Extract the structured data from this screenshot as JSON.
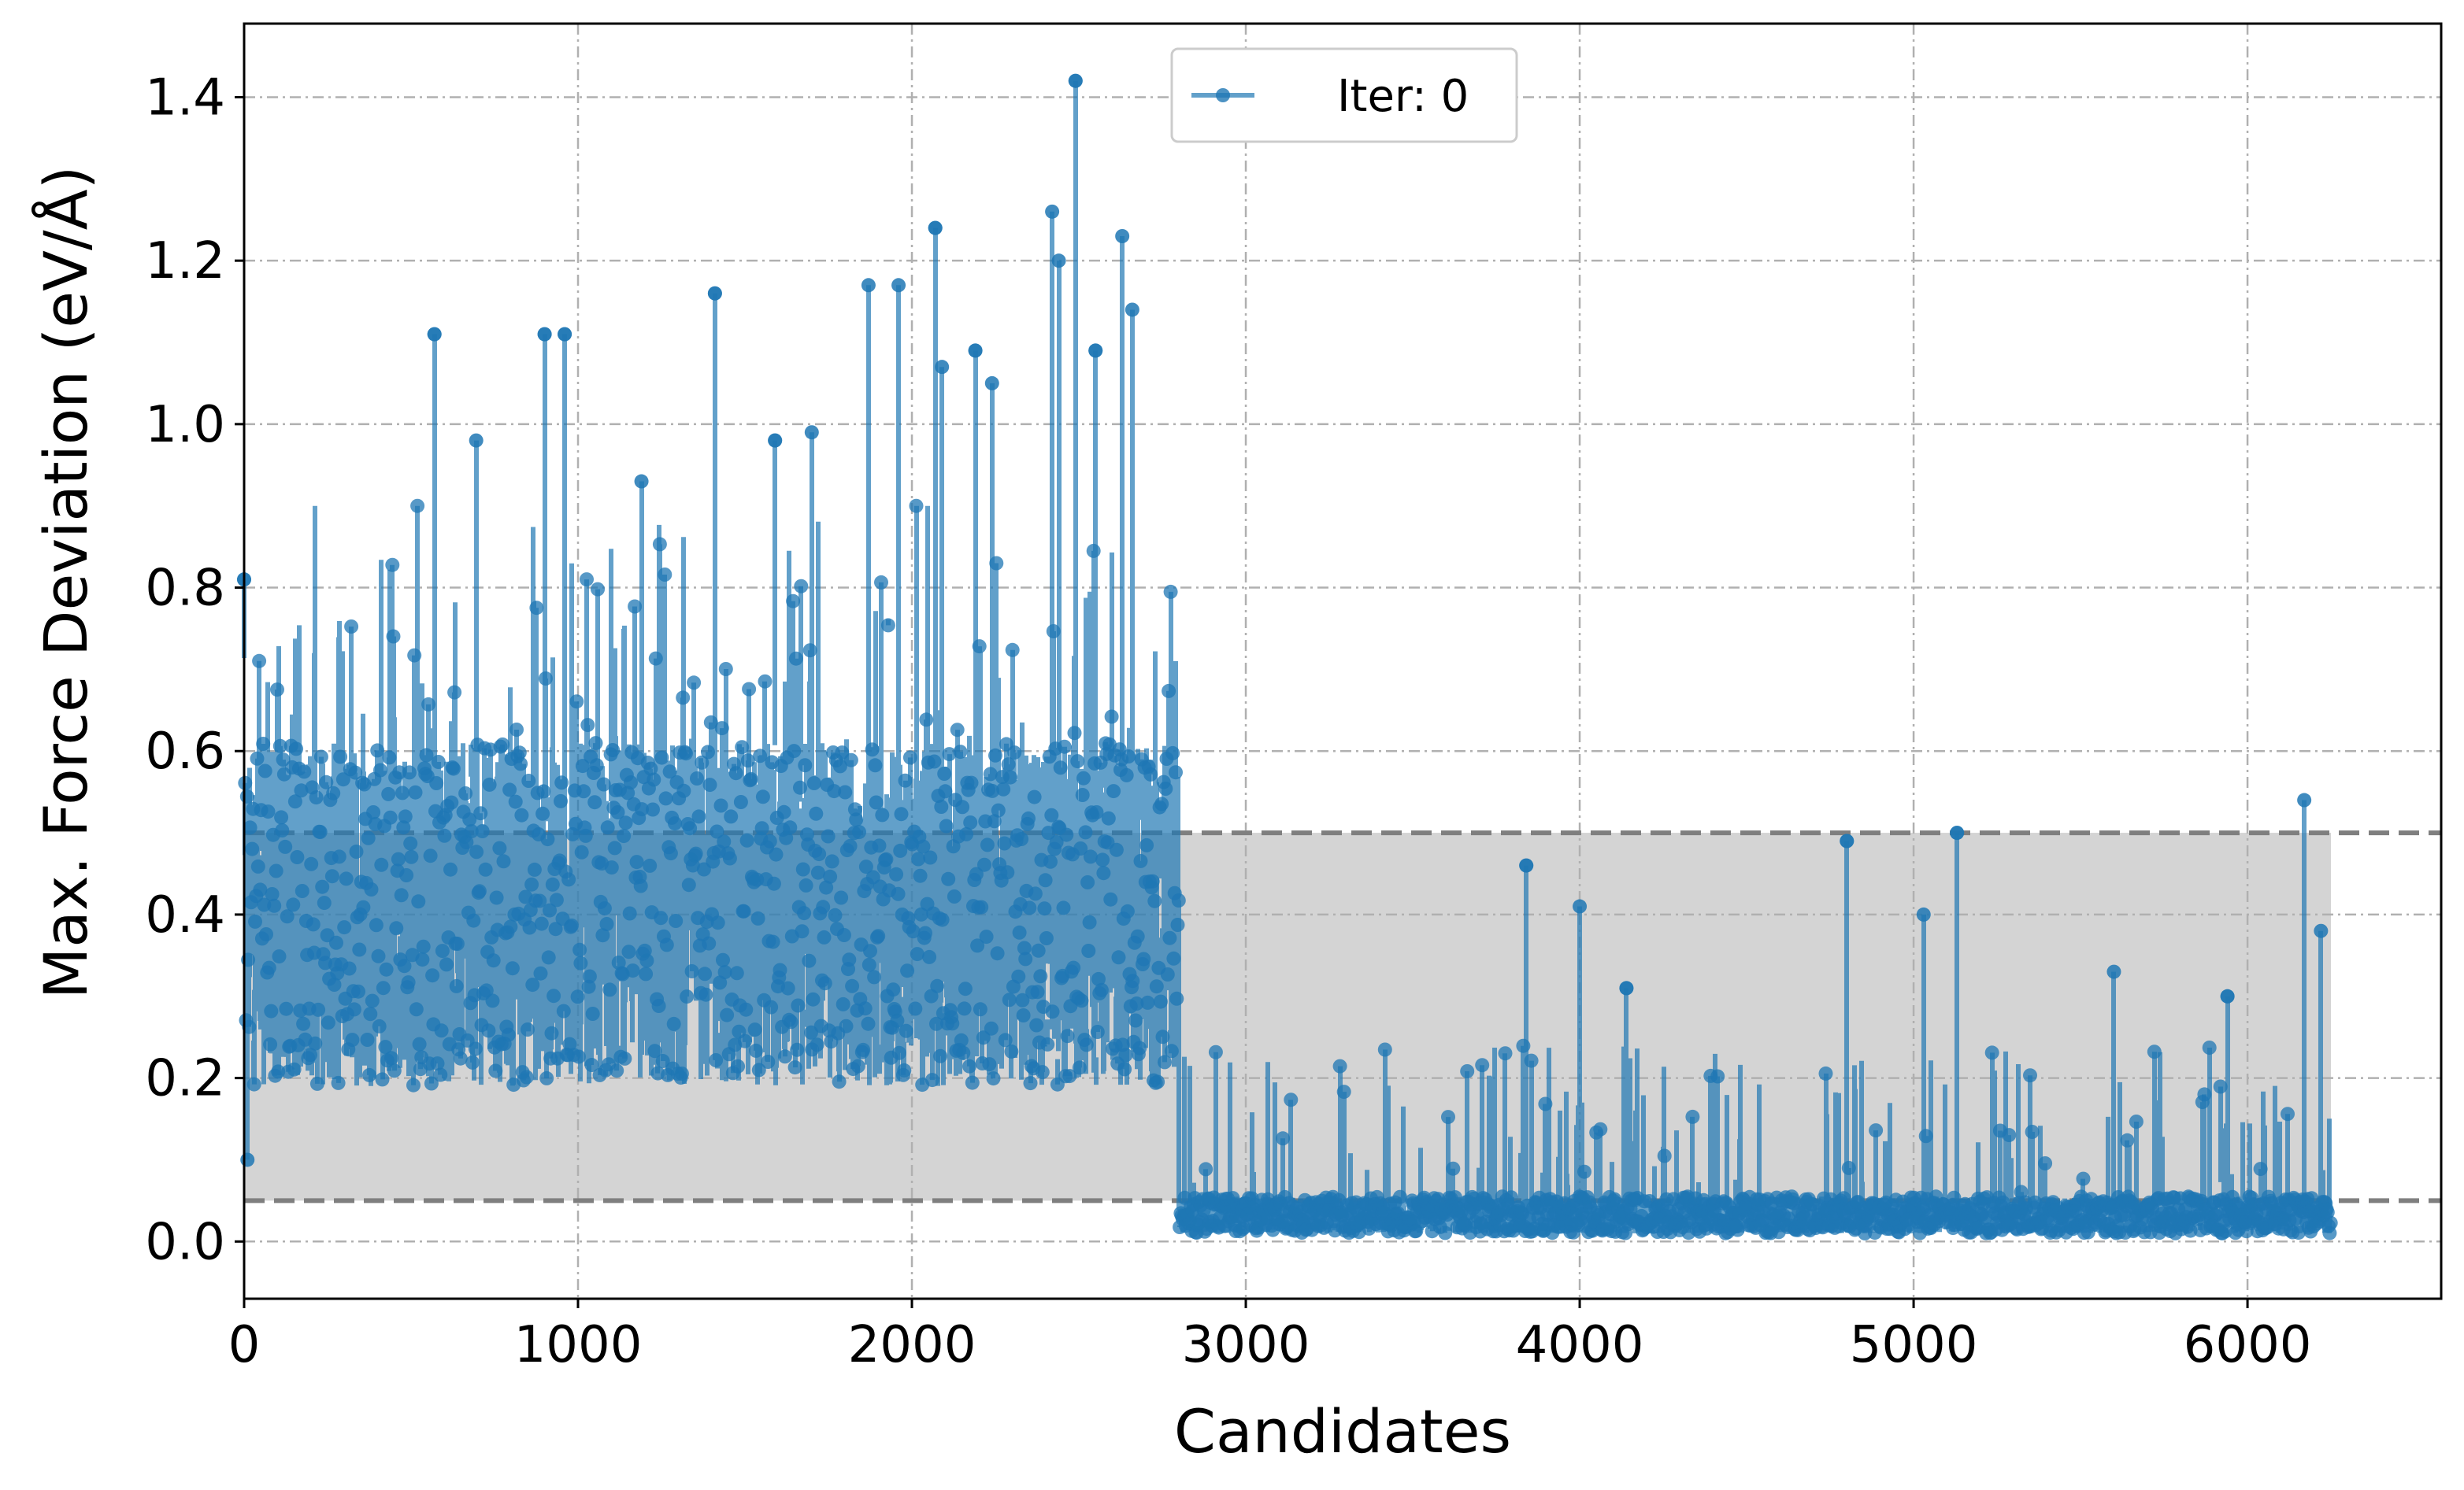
{
  "chart_data": {
    "type": "line",
    "xlabel": "Candidates",
    "ylabel": "Max. Force Deviation (eV/Å)",
    "xlim": [
      0,
      6580
    ],
    "ylim": [
      -0.07,
      1.49
    ],
    "x_ticks": [
      0,
      1000,
      2000,
      3000,
      4000,
      5000,
      6000
    ],
    "y_ticks": [
      0.0,
      0.2,
      0.4,
      0.6,
      0.8,
      1.0,
      1.2,
      1.4
    ],
    "x_tick_labels": [
      "0",
      "1000",
      "2000",
      "3000",
      "4000",
      "5000",
      "6000"
    ],
    "y_tick_labels": [
      "0.0",
      "0.2",
      "0.4",
      "0.6",
      "0.8",
      "1.0",
      "1.2",
      "1.4"
    ],
    "grid": true,
    "legend_position": "top-center",
    "series": [
      {
        "name": "Iter: 0",
        "color": "#1f77b4",
        "n_points": 6250,
        "segments": [
          {
            "x_range": [
              0,
              2800
            ],
            "typical_range": [
              0.15,
              0.8
            ],
            "center": 0.4
          },
          {
            "x_range": [
              2800,
              6250
            ],
            "typical_range": [
              0.0,
              0.06
            ],
            "center": 0.02
          }
        ],
        "peaks": [
          {
            "x": 0,
            "y": 0.81
          },
          {
            "x": 10,
            "y": 0.1
          },
          {
            "x": 570,
            "y": 1.11
          },
          {
            "x": 695,
            "y": 0.98
          },
          {
            "x": 900,
            "y": 1.11
          },
          {
            "x": 960,
            "y": 1.11
          },
          {
            "x": 1190,
            "y": 0.93
          },
          {
            "x": 1410,
            "y": 1.16
          },
          {
            "x": 1590,
            "y": 0.98
          },
          {
            "x": 1700,
            "y": 0.99
          },
          {
            "x": 1870,
            "y": 1.17
          },
          {
            "x": 1960,
            "y": 1.17
          },
          {
            "x": 2070,
            "y": 1.24
          },
          {
            "x": 2090,
            "y": 1.07
          },
          {
            "x": 2190,
            "y": 1.09
          },
          {
            "x": 2240,
            "y": 1.05
          },
          {
            "x": 2420,
            "y": 1.26
          },
          {
            "x": 2440,
            "y": 1.2
          },
          {
            "x": 2490,
            "y": 1.42
          },
          {
            "x": 2550,
            "y": 1.09
          },
          {
            "x": 2630,
            "y": 1.23
          },
          {
            "x": 2660,
            "y": 1.14
          },
          {
            "x": 3840,
            "y": 0.46
          },
          {
            "x": 4000,
            "y": 0.41
          },
          {
            "x": 4140,
            "y": 0.31
          },
          {
            "x": 4800,
            "y": 0.49
          },
          {
            "x": 5030,
            "y": 0.4
          },
          {
            "x": 5130,
            "y": 0.5
          },
          {
            "x": 5600,
            "y": 0.33
          },
          {
            "x": 5940,
            "y": 0.3
          },
          {
            "x": 6170,
            "y": 0.54
          },
          {
            "x": 6220,
            "y": 0.38
          }
        ]
      }
    ],
    "reference_lines": [
      {
        "y": 0.5,
        "style": "dashed",
        "color": "#7f7f7f"
      },
      {
        "y": 0.05,
        "style": "dashed",
        "color": "#7f7f7f"
      }
    ],
    "shaded_band": {
      "x_range": [
        0,
        6250
      ],
      "y_range": [
        0.05,
        0.5
      ],
      "color": "#d4d4d4"
    }
  }
}
